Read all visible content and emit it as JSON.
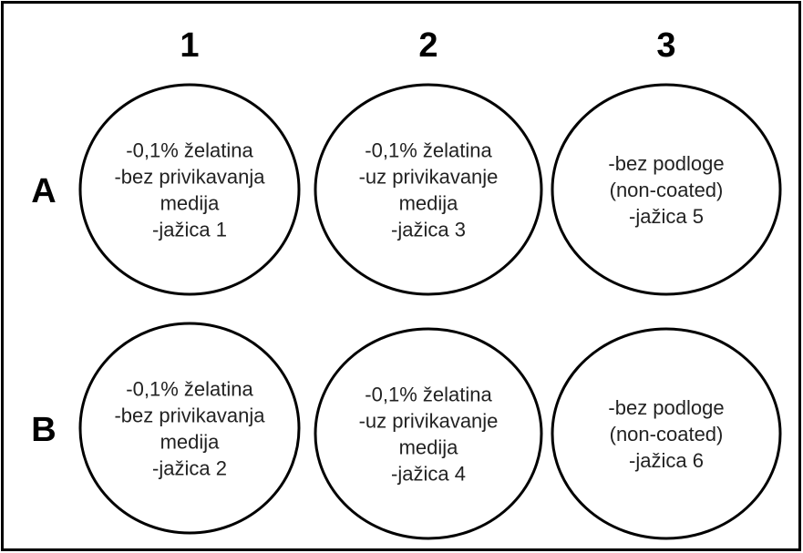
{
  "columns": [
    "1",
    "2",
    "3"
  ],
  "rows": [
    {
      "label": "A",
      "wells": [
        {
          "lines": [
            "-0,1% želatina",
            "-bez privikavanja",
            "medija",
            "-jažica 1"
          ]
        },
        {
          "lines": [
            "-0,1% želatina",
            "-uz privikavanje",
            "medija",
            "-jažica 3"
          ]
        },
        {
          "lines": [
            "-bez podloge",
            "(non-coated)",
            "-jažica 5"
          ]
        }
      ]
    },
    {
      "label": "B",
      "wells": [
        {
          "lines": [
            "-0,1% želatina",
            "-bez privikavanja",
            "medija",
            "-jažica 2"
          ]
        },
        {
          "lines": [
            "-0,1% želatina",
            "-uz privikavanje",
            "medija",
            "-jažica 4"
          ]
        },
        {
          "lines": [
            "-bez podloge",
            "(non-coated)",
            "-jažica 6"
          ]
        }
      ]
    }
  ]
}
